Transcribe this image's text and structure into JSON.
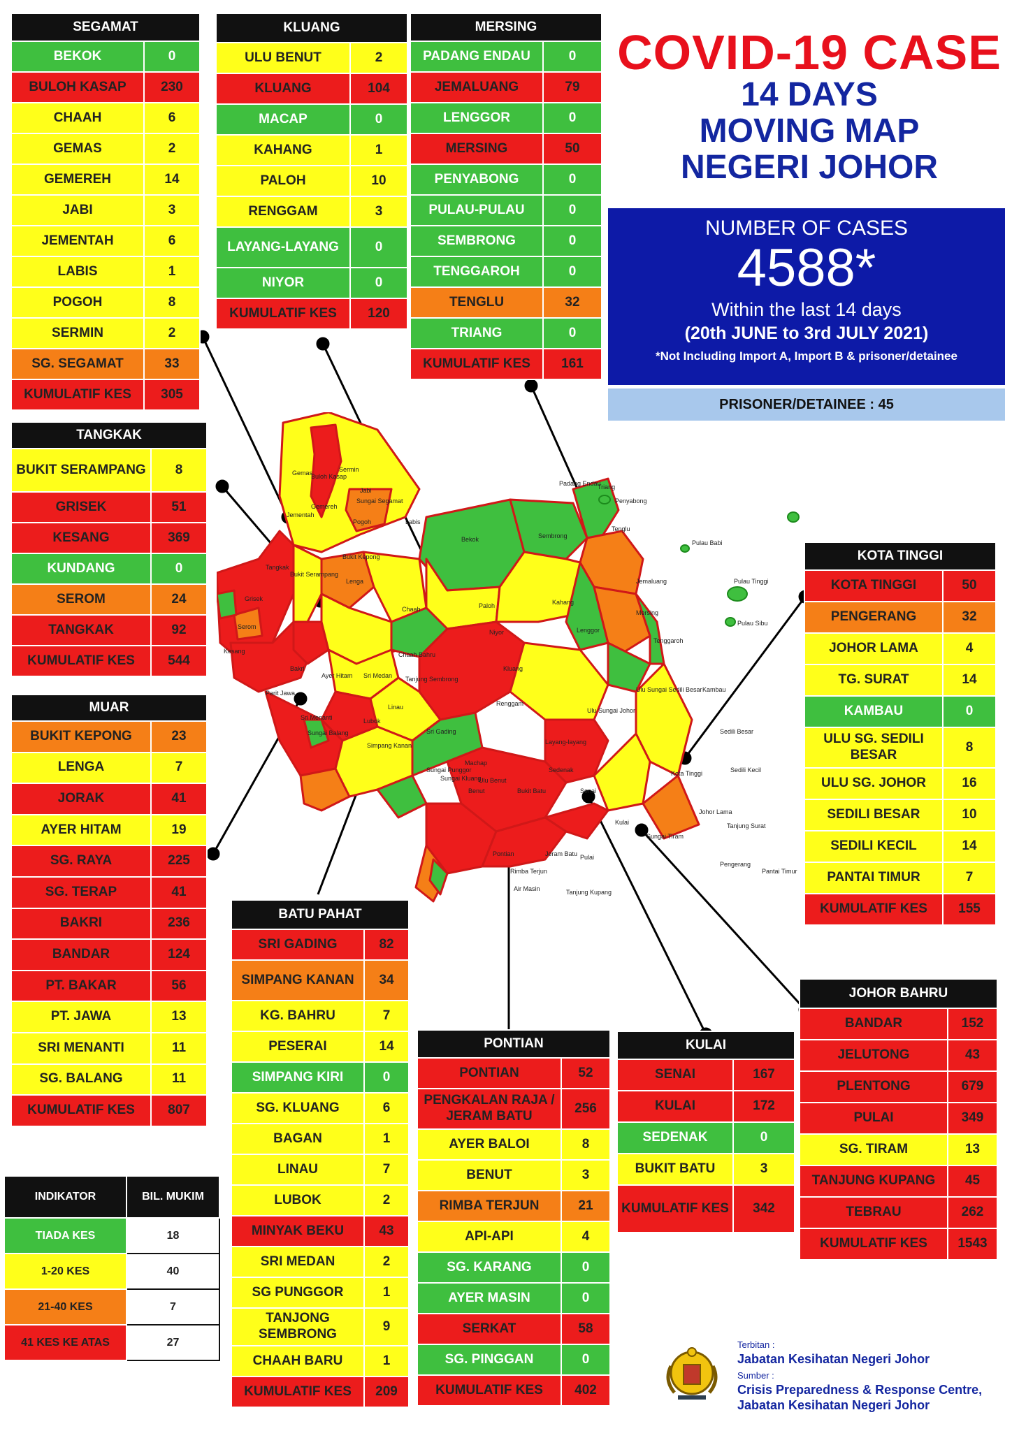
{
  "title": {
    "line1": "COVID-19 CASE",
    "line2": "14 DAYS",
    "line3": "MOVING MAP",
    "line4": "NEGERI JOHOR"
  },
  "summary": {
    "label": "NUMBER OF CASES",
    "total": "4588*",
    "period_line1": "Within the last 14 days",
    "period_line2": "(20th JUNE to 3rd JULY 2021)",
    "note": "*Not Including Import A, Import B & prisoner/detainee",
    "prisoner": "PRISONER/DETAINEE : 45"
  },
  "colors": {
    "green": "#3fbf3f",
    "yellow": "#ffff1a",
    "orange": "#f57f17",
    "red": "#ec1c1c",
    "header": "#111111",
    "title_red": "#e8101c",
    "title_blue": "#1326a0",
    "cases_box": "#0d1aa7",
    "prisoner_box": "#a8c8ec"
  },
  "districts": {
    "segamat": {
      "name": "SEGAMAT",
      "rows": [
        {
          "mukim": "BEKOK",
          "cases": "0",
          "level": "green"
        },
        {
          "mukim": "BULOH KASAP",
          "cases": "230",
          "level": "red"
        },
        {
          "mukim": "CHAAH",
          "cases": "6",
          "level": "yellow"
        },
        {
          "mukim": "GEMAS",
          "cases": "2",
          "level": "yellow"
        },
        {
          "mukim": "GEMEREH",
          "cases": "14",
          "level": "yellow"
        },
        {
          "mukim": "JABI",
          "cases": "3",
          "level": "yellow"
        },
        {
          "mukim": "JEMENTAH",
          "cases": "6",
          "level": "yellow"
        },
        {
          "mukim": "LABIS",
          "cases": "1",
          "level": "yellow"
        },
        {
          "mukim": "POGOH",
          "cases": "8",
          "level": "yellow"
        },
        {
          "mukim": "SERMIN",
          "cases": "2",
          "level": "yellow"
        },
        {
          "mukim": "SG. SEGAMAT",
          "cases": "33",
          "level": "orange"
        }
      ],
      "total_label": "KUMULATIF KES",
      "total": "305"
    },
    "kluang": {
      "name": "KLUANG",
      "rows": [
        {
          "mukim": "ULU BENUT",
          "cases": "2",
          "level": "yellow"
        },
        {
          "mukim": "KLUANG",
          "cases": "104",
          "level": "red"
        },
        {
          "mukim": "MACAP",
          "cases": "0",
          "level": "green"
        },
        {
          "mukim": "KAHANG",
          "cases": "1",
          "level": "yellow"
        },
        {
          "mukim": "PALOH",
          "cases": "10",
          "level": "yellow"
        },
        {
          "mukim": "RENGGAM",
          "cases": "3",
          "level": "yellow"
        },
        {
          "mukim": "LAYANG-LAYANG",
          "cases": "0",
          "level": "green"
        },
        {
          "mukim": "NIYOR",
          "cases": "0",
          "level": "green"
        }
      ],
      "total_label": "KUMULATIF KES",
      "total": "120"
    },
    "mersing": {
      "name": "MERSING",
      "rows": [
        {
          "mukim": "PADANG ENDAU",
          "cases": "0",
          "level": "green"
        },
        {
          "mukim": "JEMALUANG",
          "cases": "79",
          "level": "red"
        },
        {
          "mukim": "LENGGOR",
          "cases": "0",
          "level": "green"
        },
        {
          "mukim": "MERSING",
          "cases": "50",
          "level": "red"
        },
        {
          "mukim": "PENYABONG",
          "cases": "0",
          "level": "green"
        },
        {
          "mukim": "PULAU-PULAU",
          "cases": "0",
          "level": "green"
        },
        {
          "mukim": "SEMBRONG",
          "cases": "0",
          "level": "green"
        },
        {
          "mukim": "TENGGAROH",
          "cases": "0",
          "level": "green"
        },
        {
          "mukim": "TENGLU",
          "cases": "32",
          "level": "orange"
        },
        {
          "mukim": "TRIANG",
          "cases": "0",
          "level": "green"
        }
      ],
      "total_label": "KUMULATIF KES",
      "total": "161"
    },
    "tangkak": {
      "name": "TANGKAK",
      "rows": [
        {
          "mukim": "BUKIT SERAMPANG",
          "cases": "8",
          "level": "yellow"
        },
        {
          "mukim": "GRISEK",
          "cases": "51",
          "level": "red"
        },
        {
          "mukim": "KESANG",
          "cases": "369",
          "level": "red"
        },
        {
          "mukim": "KUNDANG",
          "cases": "0",
          "level": "green"
        },
        {
          "mukim": "SEROM",
          "cases": "24",
          "level": "orange"
        },
        {
          "mukim": "TANGKAK",
          "cases": "92",
          "level": "red"
        }
      ],
      "total_label": "KUMULATIF KES",
      "total": "544"
    },
    "muar": {
      "name": "MUAR",
      "rows": [
        {
          "mukim": "BUKIT KEPONG",
          "cases": "23",
          "level": "orange"
        },
        {
          "mukim": "LENGA",
          "cases": "7",
          "level": "yellow"
        },
        {
          "mukim": "JORAK",
          "cases": "41",
          "level": "red"
        },
        {
          "mukim": "AYER HITAM",
          "cases": "19",
          "level": "yellow"
        },
        {
          "mukim": "SG. RAYA",
          "cases": "225",
          "level": "red"
        },
        {
          "mukim": "SG. TERAP",
          "cases": "41",
          "level": "red"
        },
        {
          "mukim": "BAKRI",
          "cases": "236",
          "level": "red"
        },
        {
          "mukim": "BANDAR",
          "cases": "124",
          "level": "red"
        },
        {
          "mukim": "PT. BAKAR",
          "cases": "56",
          "level": "red"
        },
        {
          "mukim": "PT. JAWA",
          "cases": "13",
          "level": "yellow"
        },
        {
          "mukim": "SRI MENANTI",
          "cases": "11",
          "level": "yellow"
        },
        {
          "mukim": "SG. BALANG",
          "cases": "11",
          "level": "yellow"
        }
      ],
      "total_label": "KUMULATIF KES",
      "total": "807"
    },
    "batu_pahat": {
      "name": "BATU PAHAT",
      "rows": [
        {
          "mukim": "SRI GADING",
          "cases": "82",
          "level": "red"
        },
        {
          "mukim": "SIMPANG KANAN",
          "cases": "34",
          "level": "orange"
        },
        {
          "mukim": "KG. BAHRU",
          "cases": "7",
          "level": "yellow"
        },
        {
          "mukim": "PESERAI",
          "cases": "14",
          "level": "yellow"
        },
        {
          "mukim": "SIMPANG KIRI",
          "cases": "0",
          "level": "green"
        },
        {
          "mukim": "SG. KLUANG",
          "cases": "6",
          "level": "yellow"
        },
        {
          "mukim": "BAGAN",
          "cases": "1",
          "level": "yellow"
        },
        {
          "mukim": "LINAU",
          "cases": "7",
          "level": "yellow"
        },
        {
          "mukim": "LUBOK",
          "cases": "2",
          "level": "yellow"
        },
        {
          "mukim": "MINYAK BEKU",
          "cases": "43",
          "level": "red"
        },
        {
          "mukim": "SRI MEDAN",
          "cases": "2",
          "level": "yellow"
        },
        {
          "mukim": "SG PUNGGOR",
          "cases": "1",
          "level": "yellow"
        },
        {
          "mukim": "TANJONG SEMBRONG",
          "cases": "9",
          "level": "yellow"
        },
        {
          "mukim": "CHAAH BARU",
          "cases": "1",
          "level": "yellow"
        }
      ],
      "total_label": "KUMULATIF KES",
      "total": "209"
    },
    "pontian": {
      "name": "PONTIAN",
      "rows": [
        {
          "mukim": "PONTIAN",
          "cases": "52",
          "level": "red"
        },
        {
          "mukim": "PENGKALAN RAJA / JERAM BATU",
          "cases": "256",
          "level": "red"
        },
        {
          "mukim": "AYER BALOI",
          "cases": "8",
          "level": "yellow"
        },
        {
          "mukim": "BENUT",
          "cases": "3",
          "level": "yellow"
        },
        {
          "mukim": "RIMBA TERJUN",
          "cases": "21",
          "level": "orange"
        },
        {
          "mukim": "API-API",
          "cases": "4",
          "level": "yellow"
        },
        {
          "mukim": "SG. KARANG",
          "cases": "0",
          "level": "green"
        },
        {
          "mukim": "AYER MASIN",
          "cases": "0",
          "level": "green"
        },
        {
          "mukim": "SERKAT",
          "cases": "58",
          "level": "red"
        },
        {
          "mukim": "SG. PINGGAN",
          "cases": "0",
          "level": "green"
        }
      ],
      "total_label": "KUMULATIF KES",
      "total": "402"
    },
    "kulai": {
      "name": "KULAI",
      "rows": [
        {
          "mukim": "SENAI",
          "cases": "167",
          "level": "red"
        },
        {
          "mukim": "KULAI",
          "cases": "172",
          "level": "red"
        },
        {
          "mukim": "SEDENAK",
          "cases": "0",
          "level": "green"
        },
        {
          "mukim": "BUKIT BATU",
          "cases": "3",
          "level": "yellow"
        }
      ],
      "total_label": "KUMULATIF KES",
      "total": "342"
    },
    "kota_tinggi": {
      "name": "KOTA TINGGI",
      "rows": [
        {
          "mukim": "KOTA TINGGI",
          "cases": "50",
          "level": "red"
        },
        {
          "mukim": "PENGERANG",
          "cases": "32",
          "level": "orange"
        },
        {
          "mukim": "JOHOR LAMA",
          "cases": "4",
          "level": "yellow"
        },
        {
          "mukim": "TG. SURAT",
          "cases": "14",
          "level": "yellow"
        },
        {
          "mukim": "KAMBAU",
          "cases": "0",
          "level": "green"
        },
        {
          "mukim": "ULU SG. SEDILI BESAR",
          "cases": "8",
          "level": "yellow"
        },
        {
          "mukim": "ULU SG. JOHOR",
          "cases": "16",
          "level": "yellow"
        },
        {
          "mukim": "SEDILI BESAR",
          "cases": "10",
          "level": "yellow"
        },
        {
          "mukim": "SEDILI KECIL",
          "cases": "14",
          "level": "yellow"
        },
        {
          "mukim": "PANTAI TIMUR",
          "cases": "7",
          "level": "yellow"
        }
      ],
      "total_label": "KUMULATIF KES",
      "total": "155"
    },
    "johor_bahru": {
      "name": "JOHOR BAHRU",
      "rows": [
        {
          "mukim": "BANDAR",
          "cases": "152",
          "level": "red"
        },
        {
          "mukim": "JELUTONG",
          "cases": "43",
          "level": "red"
        },
        {
          "mukim": "PLENTONG",
          "cases": "679",
          "level": "red"
        },
        {
          "mukim": "PULAI",
          "cases": "349",
          "level": "red"
        },
        {
          "mukim": "SG. TIRAM",
          "cases": "13",
          "level": "yellow"
        },
        {
          "mukim": "TANJUNG KUPANG",
          "cases": "45",
          "level": "red"
        },
        {
          "mukim": "TEBRAU",
          "cases": "262",
          "level": "red"
        }
      ],
      "total_label": "KUMULATIF KES",
      "total": "1543"
    }
  },
  "legend": {
    "header_indicator": "INDIKATOR",
    "header_count": "BIL. MUKIM",
    "rows": [
      {
        "label": "TIADA KES",
        "count": "18",
        "level": "green"
      },
      {
        "label": "1-20 KES",
        "count": "40",
        "level": "yellow"
      },
      {
        "label": "21-40 KES",
        "count": "7",
        "level": "orange"
      },
      {
        "label": "41 KES KE ATAS",
        "count": "27",
        "level": "red"
      }
    ]
  },
  "map_labels": {
    "gemas": "Gemas",
    "buloh_kasap": "Buloh Kasap",
    "sermin": "Sermin",
    "jabi": "Jabi",
    "gemereh": "Gemereh",
    "jementah": "Jementah",
    "sungai_segamat": "Sungai Segamat",
    "pogoh": "Pogoh",
    "labis": "Labis",
    "bekok": "Bekok",
    "sembrong": "Sembrong",
    "padang_endau": "Padang Endau",
    "triang": "Triang",
    "penyabong": "Penyabong",
    "tenglu": "Tenglu",
    "pulau_babi": "Pulau Babi",
    "pulau_tinggi": "Pulau Tinggi",
    "pulau_sibu": "Pulau Sibu",
    "tangkak": "Tangkak",
    "bukit_serampang": "Bukit Serampang",
    "bukit_kepong": "Bukit Kepong",
    "grisek": "Grisek",
    "serom": "Serom",
    "lenga": "Lenga",
    "chaah": "Chaah",
    "paloh": "Paloh",
    "kahang": "Kahang",
    "jemaluang": "Jemaluang",
    "mersing": "Mersing",
    "lenggor": "Lenggor",
    "tenggaroh": "Tenggaroh",
    "niyor": "Niyor",
    "kesang": "Kesang",
    "chaah_bahru": "Chaah Bahru",
    "kluang": "Kluang",
    "bakri": "Bakri",
    "ayer_hitam": "Ayer Hitam",
    "sri_medan": "Sri Medan",
    "tanjung_sembrong": "Tanjung Sembrong",
    "kambau": "Kambau",
    "parit_jawa": "Parit Jawa",
    "sri_gading": "Sri Gading",
    "renggam": "Renggam",
    "ulu_sungai_johor": "Ulu Sungai Johor",
    "ulu_sungai_sedili_besar": "Ulu Sungai Sedili Besar",
    "sedili_besar": "Sedili Besar",
    "sri_menanti": "Sri Menanti",
    "sungai_balang": "Sungai Balang",
    "lubok": "Lubok",
    "linau": "Linau",
    "simpang_kanan": "Simpang Kanan",
    "machap": "Machap",
    "layang_layang": "Layang-layang",
    "sedenak": "Sedenak",
    "ulu_benut": "Ulu Benut",
    "kota_tinggi": "Kota Tinggi",
    "sedili_kecil": "Sedili Kecil",
    "sungai_punggor": "Sungai Punggor",
    "sungai_kluang": "Sungai Kluang",
    "benut": "Benut",
    "bukit_batu": "Bukit Batu",
    "senai": "Senai",
    "kulai": "Kulai",
    "johor_lama": "Johor Lama",
    "tanjung_surat": "Tanjung Surat",
    "pontian": "Pontian",
    "jeram_batu": "Jeram Batu",
    "sungai_tiram": "Sungai Tiram",
    "pulai": "Pulai",
    "pengerang": "Pengerang",
    "pantai_timur": "Pantai Timur",
    "rimba_terjun": "Rimba Terjun",
    "air_masin": "Air Masin",
    "tanjung_kupang": "Tanjung Kupang"
  },
  "footer": {
    "published_by_label": "Terbitan :",
    "published_by": "Jabatan Kesihatan Negeri Johor",
    "source_label": "Sumber :",
    "source_line1": "Crisis Preparedness & Response Centre,",
    "source_line2": "Jabatan Kesihatan Negeri Johor"
  }
}
